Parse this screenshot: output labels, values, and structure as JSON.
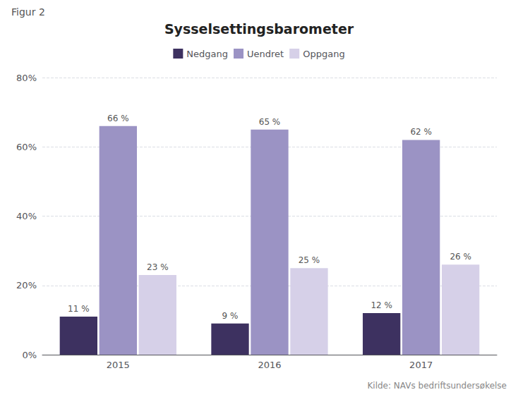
{
  "chart_data": {
    "type": "bar",
    "title": "Sysselsettingsbarometer",
    "annotations": [
      "Figur 2",
      "Kilde: NAVs bedriftsundersøkelse"
    ],
    "categories": [
      "2015",
      "2016",
      "2017"
    ],
    "series": [
      {
        "name": "Nedgang",
        "color": "#3d3160",
        "values": [
          11,
          9,
          12
        ],
        "value_labels": [
          "11 %",
          "9 %",
          "12 %"
        ]
      },
      {
        "name": "Uendret",
        "color": "#9b93c4",
        "values": [
          66,
          65,
          62
        ],
        "value_labels": [
          "66 %",
          "65 %",
          "62 %"
        ]
      },
      {
        "name": "Oppgang",
        "color": "#d6d0e8",
        "values": [
          23,
          25,
          26
        ],
        "value_labels": [
          "23 %",
          "25 %",
          "26 %"
        ]
      }
    ],
    "ylim": [
      0,
      80
    ],
    "yticks": [
      {
        "value": 0,
        "label": "0%"
      },
      {
        "value": 20,
        "label": "20%"
      },
      {
        "value": 40,
        "label": "40%"
      },
      {
        "value": 60,
        "label": "60%"
      },
      {
        "value": 80,
        "label": "80%"
      }
    ],
    "grid": true,
    "legend": "top",
    "data_labels": true
  }
}
